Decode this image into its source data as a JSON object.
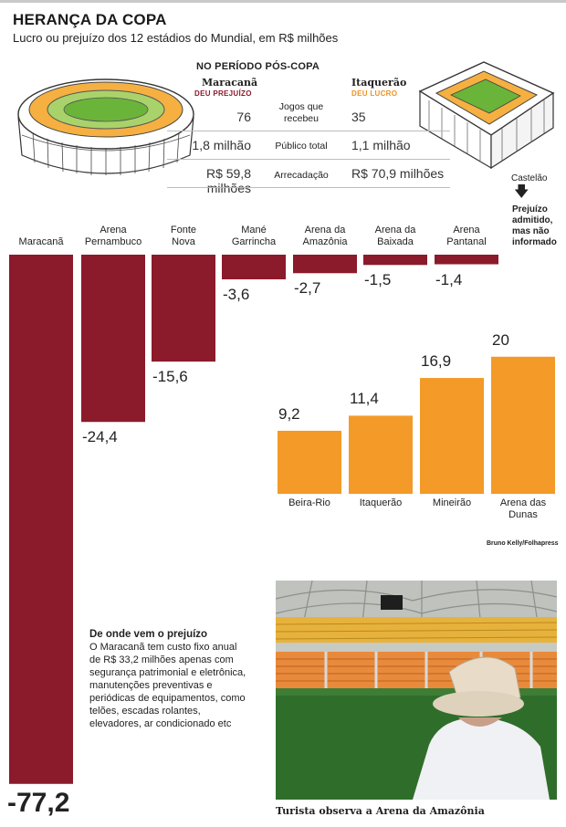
{
  "header": {
    "title": "HERANÇA DA COPA",
    "subtitle": "Lucro ou prejuízo dos 12 estádios do Mundial, em R$ milhões"
  },
  "comparison": {
    "heading": "NO PERÍODO PÓS-COPA",
    "left": {
      "name": "Maracanã",
      "tag": "DEU PREJUÍZO"
    },
    "right": {
      "name": "Itaquerão",
      "tag": "DEU LUCRO"
    },
    "rows": [
      {
        "metric": "Jogos que recebeu",
        "left": "76",
        "right": "35"
      },
      {
        "metric": "Público total",
        "left": "1,8 milhão",
        "right": "1,1 milhão"
      },
      {
        "metric": "Arrecadação",
        "left": "R$ 59,8 milhões",
        "right": "R$ 70,9 milhões"
      }
    ]
  },
  "castelao": {
    "label": "Castelão",
    "note": "Prejuízo admitido, mas não informado"
  },
  "chart_data": {
    "type": "bar",
    "categories": [
      "Maracanã",
      "Arena Pernambuco",
      "Fonte Nova",
      "Mané Garrincha",
      "Arena da Amazônia",
      "Arena da Baixada",
      "Arena Pantanal",
      "Beira-Rio",
      "Itaquerão",
      "Mineirão",
      "Arena das Dunas"
    ],
    "category_lines": [
      [
        "Maracanã"
      ],
      [
        "Arena",
        "Pernambuco"
      ],
      [
        "Fonte",
        "Nova"
      ],
      [
        "Mané",
        "Garrincha"
      ],
      [
        "Arena da",
        "Amazônia"
      ],
      [
        "Arena da",
        "Baixada"
      ],
      [
        "Arena",
        "Pantanal"
      ],
      [
        "Beira-Rio"
      ],
      [
        "Itaquerão"
      ],
      [
        "Mineirão"
      ],
      [
        "Arena das",
        "Dunas"
      ]
    ],
    "values": [
      -77.2,
      -24.4,
      -15.6,
      -3.6,
      -2.7,
      -1.5,
      -1.4,
      9.2,
      11.4,
      16.9,
      20
    ],
    "value_labels": [
      "-77,2",
      "-24,4",
      "-15,6",
      "-3,6",
      "-2,7",
      "-1,5",
      "-1,4",
      "9,2",
      "11,4",
      "16,9",
      "20"
    ],
    "colors": {
      "loss": "#8b1a2b",
      "profit": "#f39a28"
    }
  },
  "explanation": {
    "heading": "De onde vem o prejuízo",
    "body": "O Maracanã tem custo fixo anual de R$ 33,2 milhões apenas com segurança patrimonial e eletrônica, manutenções preventivas e periódicas de equipamentos, como telões, escadas rolantes, elevadores, ar condicionado etc"
  },
  "photo": {
    "credit": "Bruno Kelly/Folhapress",
    "caption": "Turista observa a Arena da Amazônia"
  }
}
